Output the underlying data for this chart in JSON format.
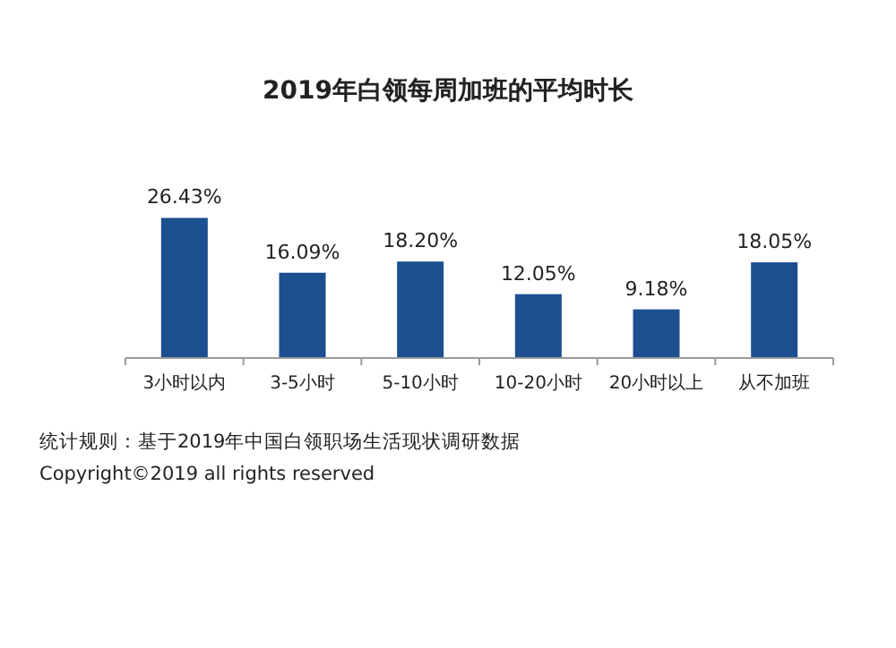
{
  "chart_data": {
    "type": "bar",
    "title": "2019年白领每周加班的平均时长",
    "categories": [
      "3小时以内",
      "3-5小时",
      "5-10小时",
      "10-20小时",
      "20小时以上",
      "从不加班"
    ],
    "values": [
      26.43,
      16.09,
      18.2,
      12.05,
      9.18,
      18.05
    ],
    "value_labels": [
      "26.43%",
      "16.09%",
      "18.20%",
      "12.05%",
      "9.18%",
      "18.05%"
    ],
    "color": "#1c4f8f",
    "annotations": [
      "统计规则：基于2019年中国白领职场生活现状调研数据",
      "Copyright©2019 all rights reserved"
    ]
  }
}
